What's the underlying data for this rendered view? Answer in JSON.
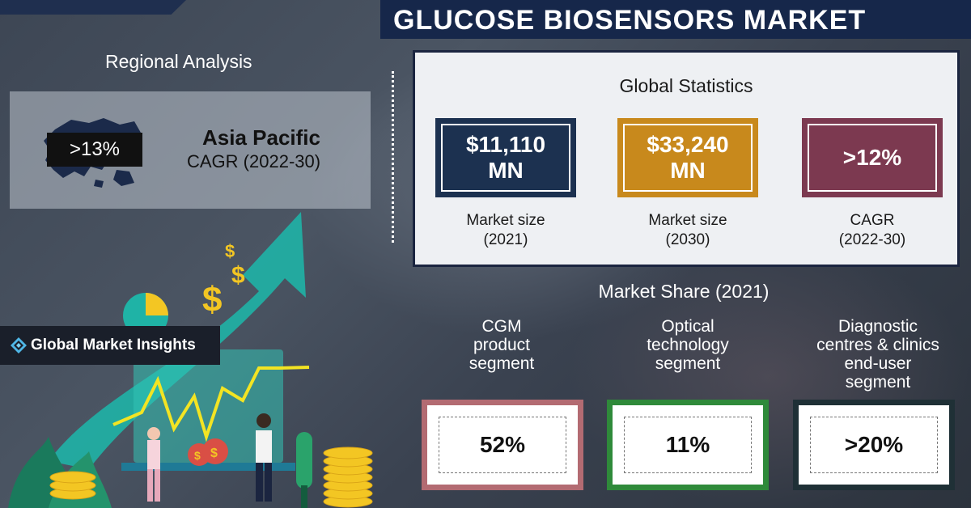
{
  "header": {
    "title": "GLUCOSE BIOSENSORS MARKET"
  },
  "regional": {
    "title": "Regional Analysis",
    "percentage": ">13%",
    "region": "Asia Pacific",
    "cagr_label": "CAGR (2022-30)"
  },
  "global_stats": {
    "title": "Global Statistics",
    "cards": [
      {
        "value": "$11,110\nMN",
        "label": "Market size\n(2021)",
        "color": "#1c3150"
      },
      {
        "value": "$33,240\nMN",
        "label": "Market size\n(2030)",
        "color": "#c8891c"
      },
      {
        "value": ">12%",
        "label": "CAGR\n(2022-30)",
        "color": "#7c3950"
      }
    ]
  },
  "market_share": {
    "title": "Market Share (2021)",
    "segments": [
      {
        "label": "CGM\nproduct\nsegment",
        "value": "52%",
        "color": "#b36b72"
      },
      {
        "label": "Optical\ntechnology\nsegment",
        "value": "11%",
        "color": "#2f8a3a"
      },
      {
        "label": "Diagnostic\ncentres & clinics\nend-user\nsegment",
        "value": ">20%",
        "color": "#1f3036"
      }
    ]
  },
  "logo": {
    "text": "Global Market Insights"
  },
  "icons": {
    "logo": "diamond-logo-icon",
    "map": "asia-pacific-map-icon",
    "illustration": "growth-chart-illustration"
  }
}
